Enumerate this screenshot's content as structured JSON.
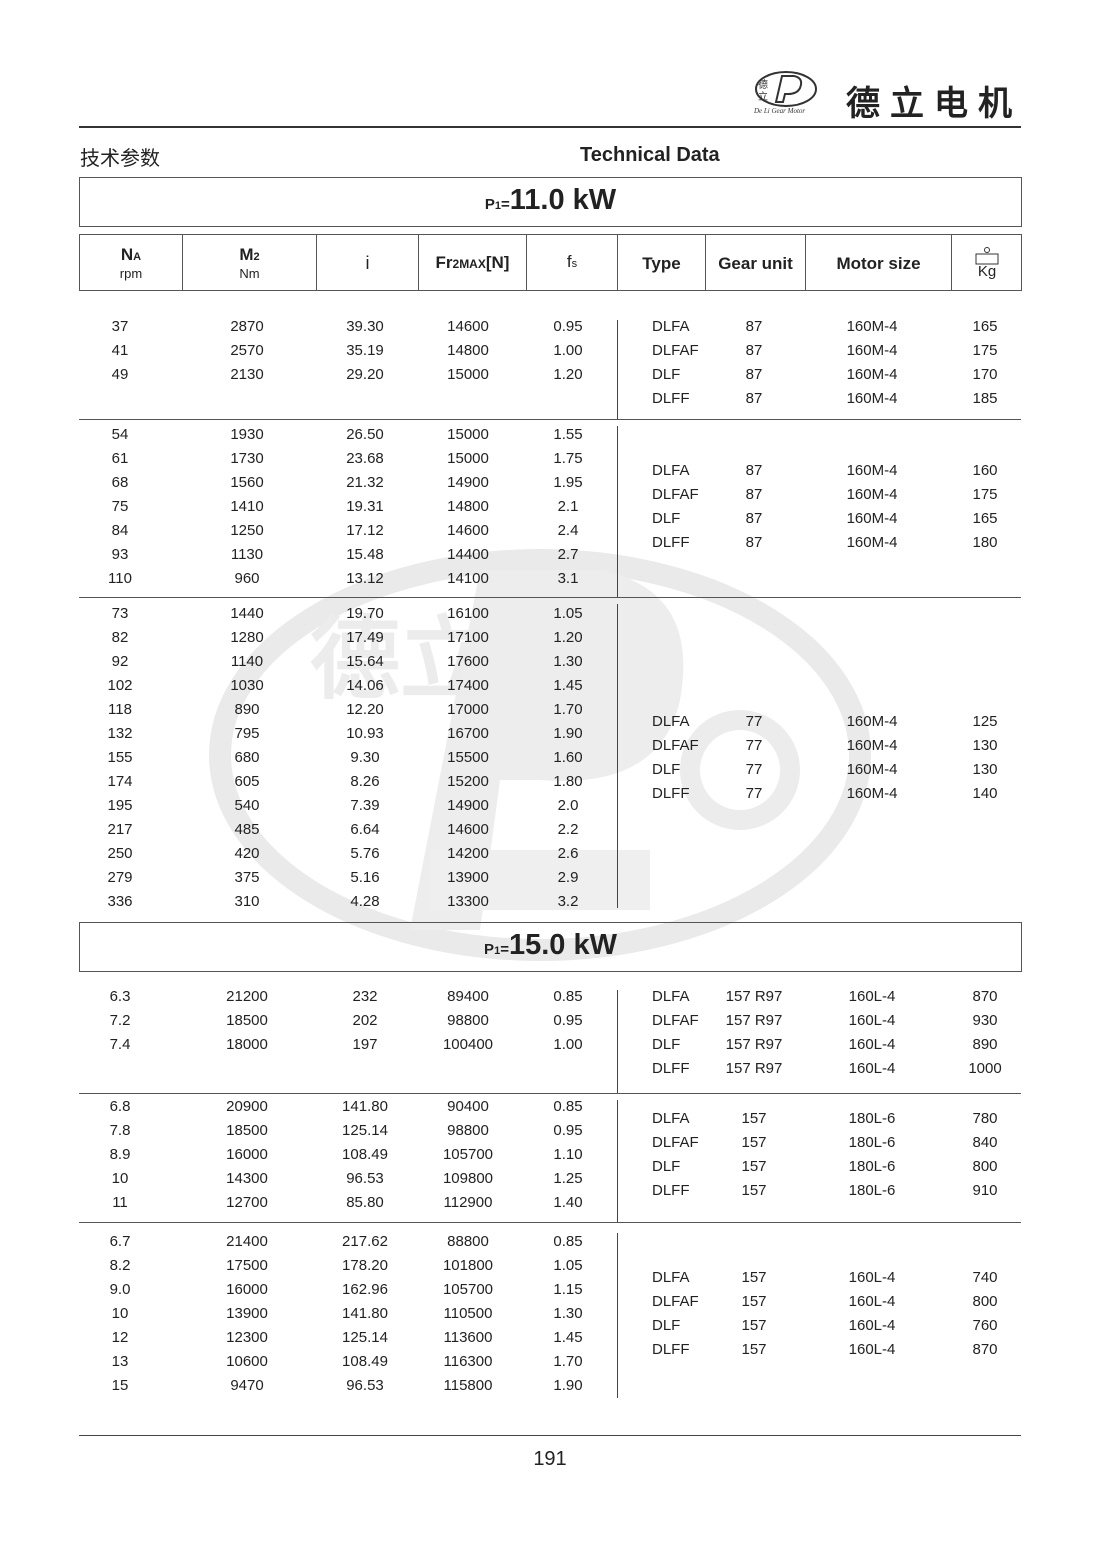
{
  "header": {
    "brand_cn": "德立电机",
    "logo_small_cn": "德立",
    "logo_arc_text": "De Li Gear Motor",
    "title_cn": "技术参数",
    "title_en": "Technical Data"
  },
  "columns": {
    "na": "N",
    "na_sub": "A",
    "na_unit": "rpm",
    "m2": "M",
    "m2_sub": "2",
    "m2_unit": "Nm",
    "i": "i",
    "fr_a": "Fr",
    "fr_b": "2MAX",
    "fr_c": "[N]",
    "fs": "f",
    "fs_sub": "s",
    "type": "Type",
    "gear_unit": "Gear unit",
    "motor_size": "Motor size",
    "weight_unit": "Kg"
  },
  "section1": {
    "power_prefix": "P",
    "power_sub": "1",
    "power_eq": "=",
    "power_value": "11.0 kW",
    "groups": [
      {
        "left": [
          [
            "37",
            "2870",
            "39.30",
            "14600",
            "0.95"
          ],
          [
            "41",
            "2570",
            "35.19",
            "14800",
            "1.00"
          ],
          [
            "49",
            "2130",
            "29.20",
            "15000",
            "1.20"
          ]
        ],
        "right": [
          [
            "DLFA",
            "87",
            "160M-4",
            "165"
          ],
          [
            "DLFAF",
            "87",
            "160M-4",
            "175"
          ],
          [
            "DLF",
            "87",
            "160M-4",
            "170"
          ],
          [
            "DLFF",
            "87",
            "160M-4",
            "185"
          ]
        ]
      },
      {
        "left": [
          [
            "54",
            "1930",
            "26.50",
            "15000",
            "1.55"
          ],
          [
            "61",
            "1730",
            "23.68",
            "15000",
            "1.75"
          ],
          [
            "68",
            "1560",
            "21.32",
            "14900",
            "1.95"
          ],
          [
            "75",
            "1410",
            "19.31",
            "14800",
            "2.1"
          ],
          [
            "84",
            "1250",
            "17.12",
            "14600",
            "2.4"
          ],
          [
            "93",
            "1130",
            "15.48",
            "14400",
            "2.7"
          ],
          [
            "110",
            "960",
            "13.12",
            "14100",
            "3.1"
          ]
        ],
        "right": [
          [
            "DLFA",
            "87",
            "160M-4",
            "160"
          ],
          [
            "DLFAF",
            "87",
            "160M-4",
            "175"
          ],
          [
            "DLF",
            "87",
            "160M-4",
            "165"
          ],
          [
            "DLFF",
            "87",
            "160M-4",
            "180"
          ]
        ]
      },
      {
        "left": [
          [
            "73",
            "1440",
            "19.70",
            "16100",
            "1.05"
          ],
          [
            "82",
            "1280",
            "17.49",
            "17100",
            "1.20"
          ],
          [
            "92",
            "1140",
            "15.64",
            "17600",
            "1.30"
          ],
          [
            "102",
            "1030",
            "14.06",
            "17400",
            "1.45"
          ],
          [
            "118",
            "890",
            "12.20",
            "17000",
            "1.70"
          ],
          [
            "132",
            "795",
            "10.93",
            "16700",
            "1.90"
          ],
          [
            "155",
            "680",
            "9.30",
            "15500",
            "1.60"
          ],
          [
            "174",
            "605",
            "8.26",
            "15200",
            "1.80"
          ],
          [
            "195",
            "540",
            "7.39",
            "14900",
            "2.0"
          ],
          [
            "217",
            "485",
            "6.64",
            "14600",
            "2.2"
          ],
          [
            "250",
            "420",
            "5.76",
            "14200",
            "2.6"
          ],
          [
            "279",
            "375",
            "5.16",
            "13900",
            "2.9"
          ],
          [
            "336",
            "310",
            "4.28",
            "13300",
            "3.2"
          ]
        ],
        "right": [
          [
            "DLFA",
            "77",
            "160M-4",
            "125"
          ],
          [
            "DLFAF",
            "77",
            "160M-4",
            "130"
          ],
          [
            "DLF",
            "77",
            "160M-4",
            "130"
          ],
          [
            "DLFF",
            "77",
            "160M-4",
            "140"
          ]
        ]
      }
    ]
  },
  "section2": {
    "power_prefix": "P",
    "power_sub": "1",
    "power_eq": "=",
    "power_value": "15.0 kW",
    "groups": [
      {
        "left": [
          [
            "6.3",
            "21200",
            "232",
            "89400",
            "0.85"
          ],
          [
            "7.2",
            "18500",
            "202",
            "98800",
            "0.95"
          ],
          [
            "7.4",
            "18000",
            "197",
            "100400",
            "1.00"
          ]
        ],
        "right": [
          [
            "DLFA",
            "157 R97",
            "160L-4",
            "870"
          ],
          [
            "DLFAF",
            "157 R97",
            "160L-4",
            "930"
          ],
          [
            "DLF",
            "157 R97",
            "160L-4",
            "890"
          ],
          [
            "DLFF",
            "157 R97",
            "160L-4",
            "1000"
          ]
        ]
      },
      {
        "left": [
          [
            "6.8",
            "20900",
            "141.80",
            "90400",
            "0.85"
          ],
          [
            "7.8",
            "18500",
            "125.14",
            "98800",
            "0.95"
          ],
          [
            "8.9",
            "16000",
            "108.49",
            "105700",
            "1.10"
          ],
          [
            "10",
            "14300",
            "96.53",
            "109800",
            "1.25"
          ],
          [
            "11",
            "12700",
            "85.80",
            "112900",
            "1.40"
          ]
        ],
        "right": [
          [
            "DLFA",
            "157",
            "180L-6",
            "780"
          ],
          [
            "DLFAF",
            "157",
            "180L-6",
            "840"
          ],
          [
            "DLF",
            "157",
            "180L-6",
            "800"
          ],
          [
            "DLFF",
            "157",
            "180L-6",
            "910"
          ]
        ]
      },
      {
        "left": [
          [
            "6.7",
            "21400",
            "217.62",
            "88800",
            "0.85"
          ],
          [
            "8.2",
            "17500",
            "178.20",
            "101800",
            "1.05"
          ],
          [
            "9.0",
            "16000",
            "162.96",
            "105700",
            "1.15"
          ],
          [
            "10",
            "13900",
            "141.80",
            "110500",
            "1.30"
          ],
          [
            "12",
            "12300",
            "125.14",
            "113600",
            "1.45"
          ],
          [
            "13",
            "10600",
            "108.49",
            "116300",
            "1.70"
          ],
          [
            "15",
            "9470",
            "96.53",
            "115800",
            "1.90"
          ]
        ],
        "right": [
          [
            "DLFA",
            "157",
            "160L-4",
            "740"
          ],
          [
            "DLFAF",
            "157",
            "160L-4",
            "800"
          ],
          [
            "DLF",
            "157",
            "160L-4",
            "760"
          ],
          [
            "DLFF",
            "157",
            "160L-4",
            "870"
          ]
        ]
      }
    ]
  },
  "footer": {
    "page_number": "191"
  }
}
